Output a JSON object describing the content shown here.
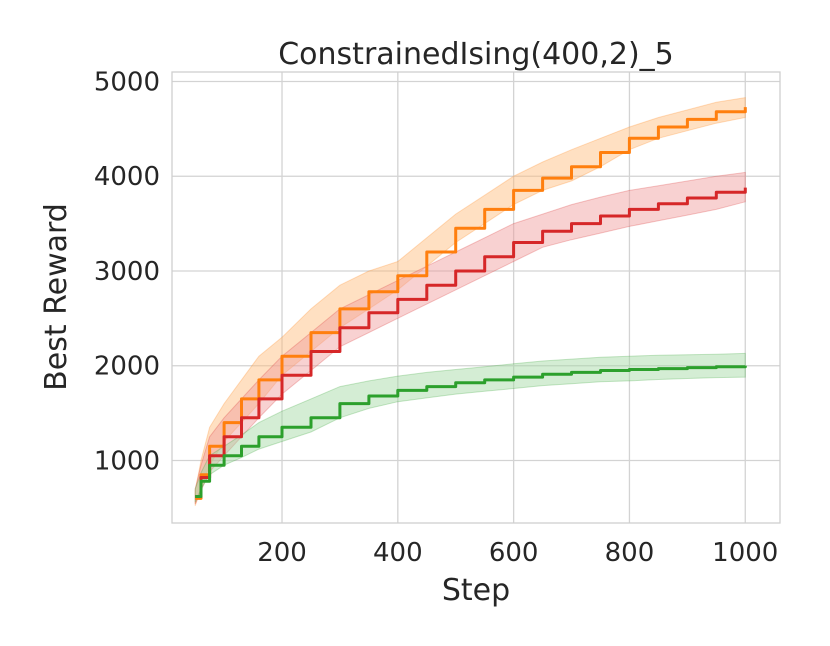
{
  "chart_data": {
    "type": "line",
    "title": "ConstrainedIsing(400,2)_5",
    "xlabel": "Step",
    "ylabel": "Best Reward",
    "xlim": [
      10,
      1060
    ],
    "ylim": [
      340,
      5100
    ],
    "xticks": [
      200,
      400,
      600,
      800,
      1000
    ],
    "yticks": [
      1000,
      2000,
      3000,
      4000,
      5000
    ],
    "grid": true,
    "legend": "none",
    "series": [
      {
        "color": "#ff7f0e",
        "band_color": "#ffbb78",
        "x": [
          50,
          60,
          75,
          100,
          130,
          160,
          200,
          250,
          300,
          350,
          400,
          450,
          500,
          550,
          600,
          650,
          700,
          750,
          800,
          850,
          900,
          950,
          1000
        ],
        "y": [
          600,
          850,
          1150,
          1400,
          1650,
          1850,
          2100,
          2350,
          2600,
          2780,
          2950,
          3200,
          3450,
          3650,
          3850,
          3980,
          4100,
          4250,
          4400,
          4520,
          4600,
          4680,
          4730
        ],
        "lower": [
          520,
          700,
          950,
          1200,
          1400,
          1600,
          1900,
          2150,
          2400,
          2600,
          2800,
          3050,
          3300,
          3500,
          3700,
          3850,
          3950,
          4100,
          4280,
          4400,
          4480,
          4560,
          4620
        ],
        "upper": [
          680,
          1000,
          1350,
          1600,
          1850,
          2100,
          2300,
          2600,
          2850,
          3000,
          3100,
          3350,
          3600,
          3800,
          4000,
          4150,
          4280,
          4400,
          4520,
          4620,
          4700,
          4780,
          4830
        ]
      },
      {
        "color": "#d62728",
        "band_color": "#ef9a9a",
        "x": [
          50,
          60,
          75,
          100,
          130,
          160,
          200,
          250,
          300,
          350,
          400,
          450,
          500,
          550,
          600,
          650,
          700,
          750,
          800,
          850,
          900,
          950,
          1000
        ],
        "y": [
          620,
          820,
          1050,
          1250,
          1450,
          1650,
          1900,
          2150,
          2400,
          2560,
          2700,
          2850,
          3000,
          3150,
          3300,
          3420,
          3500,
          3580,
          3650,
          3710,
          3770,
          3830,
          3880
        ],
        "lower": [
          540,
          680,
          880,
          1050,
          1250,
          1450,
          1700,
          1950,
          2200,
          2350,
          2500,
          2650,
          2800,
          2950,
          3100,
          3250,
          3330,
          3400,
          3470,
          3530,
          3590,
          3650,
          3730
        ],
        "upper": [
          700,
          950,
          1250,
          1450,
          1650,
          1850,
          2100,
          2350,
          2600,
          2750,
          2900,
          3050,
          3200,
          3350,
          3500,
          3600,
          3700,
          3780,
          3850,
          3900,
          3950,
          4000,
          4040
        ]
      },
      {
        "color": "#2ca02c",
        "band_color": "#9fd89f",
        "x": [
          50,
          60,
          75,
          100,
          130,
          160,
          200,
          250,
          300,
          350,
          400,
          450,
          500,
          550,
          600,
          650,
          700,
          750,
          800,
          850,
          900,
          950,
          1000
        ],
        "y": [
          620,
          780,
          950,
          1050,
          1150,
          1250,
          1350,
          1450,
          1600,
          1680,
          1740,
          1780,
          1820,
          1850,
          1880,
          1910,
          1930,
          1950,
          1960,
          1970,
          1980,
          1990,
          2000
        ],
        "lower": [
          560,
          700,
          850,
          950,
          1030,
          1120,
          1200,
          1300,
          1450,
          1550,
          1620,
          1660,
          1700,
          1730,
          1760,
          1790,
          1810,
          1830,
          1840,
          1855,
          1865,
          1875,
          1880
        ],
        "upper": [
          700,
          870,
          1050,
          1150,
          1270,
          1400,
          1520,
          1650,
          1780,
          1840,
          1890,
          1930,
          1960,
          1990,
          2020,
          2050,
          2070,
          2090,
          2100,
          2110,
          2115,
          2120,
          2130
        ]
      }
    ]
  }
}
